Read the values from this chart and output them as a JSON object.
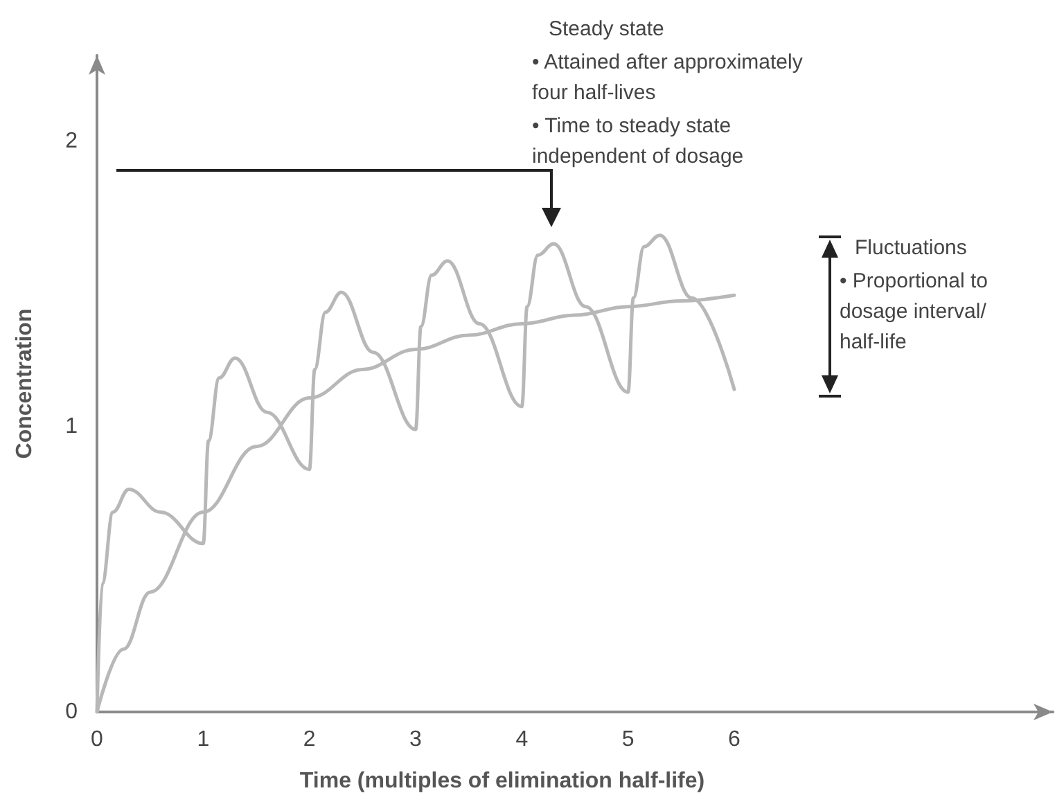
{
  "chart_data": {
    "type": "line",
    "xlabel": "Time (multiples of elimination half-life)",
    "ylabel": "Concentration",
    "xlim": [
      0,
      9
    ],
    "xticks": [
      0,
      1,
      2,
      3,
      4,
      5,
      6
    ],
    "ylim": [
      0,
      2.3
    ],
    "yticks": [
      0,
      1,
      2
    ],
    "grid": false,
    "marker": "none",
    "line_style": "solid",
    "series": [
      {
        "color": "#b8b8b8",
        "x": [
          0,
          0.05,
          0.15,
          0.3,
          0.6,
          1,
          1.05,
          1.15,
          1.3,
          1.6,
          2,
          2.05,
          2.15,
          2.3,
          2.6,
          3,
          3.05,
          3.15,
          3.3,
          3.6,
          4,
          4.05,
          4.15,
          4.3,
          4.6,
          5,
          5.05,
          5.15,
          5.3,
          5.6,
          6
        ],
        "values": [
          0,
          0.45,
          0.7,
          0.78,
          0.7,
          0.59,
          0.95,
          1.17,
          1.24,
          1.05,
          0.85,
          1.2,
          1.4,
          1.47,
          1.26,
          0.99,
          1.35,
          1.53,
          1.58,
          1.36,
          1.07,
          1.42,
          1.6,
          1.64,
          1.42,
          1.12,
          1.45,
          1.63,
          1.67,
          1.45,
          1.13
        ]
      },
      {
        "color": "#b8b8b8",
        "x": [
          0,
          0.25,
          0.5,
          1,
          1.5,
          2,
          2.5,
          3,
          3.5,
          4,
          4.5,
          5,
          5.5,
          6
        ],
        "values": [
          0,
          0.22,
          0.42,
          0.7,
          0.93,
          1.1,
          1.2,
          1.27,
          1.32,
          1.36,
          1.39,
          1.42,
          1.44,
          1.46
        ]
      }
    ],
    "annotations": [
      "Steady state",
      "• Attained after approximately four half-lives",
      "• Time to steady state independent of dosage",
      "Fluctuations",
      "• Proportional to dosage interval/ half-life"
    ]
  }
}
